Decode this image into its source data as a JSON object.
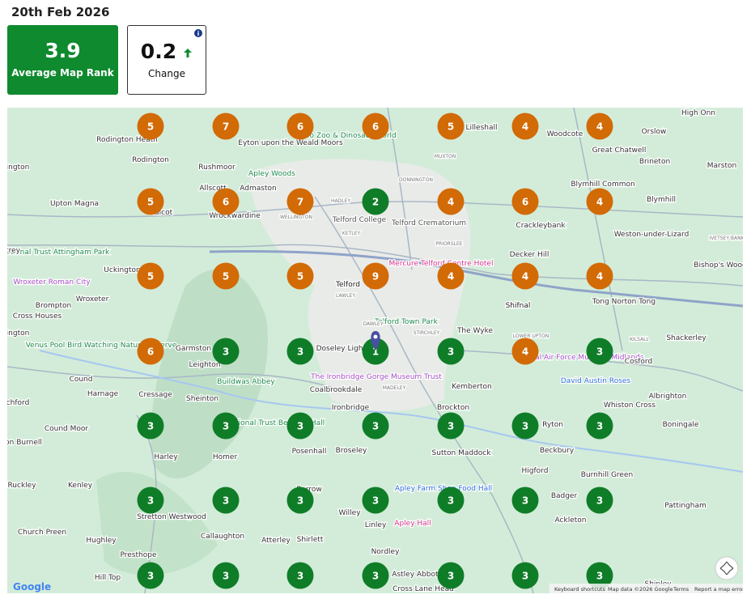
{
  "header": {
    "date": "20th Feb 2026"
  },
  "stats": {
    "average_rank": {
      "value": "3.9",
      "label": "Average Map Rank"
    },
    "change": {
      "value": "0.2",
      "label": "Change"
    }
  },
  "grid": {
    "rank_colors": {
      "1": "#0f7d28",
      "2": "#0f7d28",
      "3": "#0f7d28",
      "4": "#d26a06",
      "5": "#d26a06",
      "6": "#d26a06",
      "7": "#d26a06",
      "9": "#d26a06"
    },
    "rows": [
      [
        5,
        7,
        6,
        6,
        5,
        4,
        4
      ],
      [
        5,
        6,
        7,
        2,
        4,
        6,
        4
      ],
      [
        5,
        5,
        5,
        9,
        4,
        4,
        4
      ],
      [
        6,
        3,
        3,
        1,
        3,
        4,
        3
      ],
      [
        3,
        3,
        3,
        3,
        3,
        3,
        3
      ],
      [
        3,
        3,
        3,
        3,
        3,
        3,
        3
      ],
      [
        3,
        3,
        3,
        3,
        3,
        3,
        3
      ]
    ]
  },
  "map": {
    "places": [
      {
        "text": "Rodington Heath",
        "color": "#333"
      },
      {
        "text": "Rodington",
        "color": "#333"
      },
      {
        "text": "Rushmoor",
        "color": "#333"
      },
      {
        "text": "Allscott",
        "color": "#333"
      },
      {
        "text": "Admaston",
        "color": "#333"
      },
      {
        "text": "Eyton upon the Weald Moors",
        "color": "#333"
      },
      {
        "text": "Hoo Zoo & Dinosaur World",
        "color": "#1e8a4c"
      },
      {
        "text": "Lilleshall",
        "color": "#333"
      },
      {
        "text": "Woodcote",
        "color": "#333"
      },
      {
        "text": "Orslow",
        "color": "#333"
      },
      {
        "text": "High Onn",
        "color": "#333"
      },
      {
        "text": "Great Chatwell",
        "color": "#333"
      },
      {
        "text": "Brineton",
        "color": "#333"
      },
      {
        "text": "Marston",
        "color": "#333"
      },
      {
        "text": "Apley Woods",
        "color": "#1e8a4c"
      },
      {
        "text": "ington",
        "color": "#333"
      },
      {
        "text": "Upton Magna",
        "color": "#333"
      },
      {
        "text": "Walcot",
        "color": "#333"
      },
      {
        "text": "Wrockwardine",
        "color": "#333"
      },
      {
        "text": "Telford College",
        "color": "#555"
      },
      {
        "text": "Telford Crematorium",
        "color": "#555"
      },
      {
        "text": "Crackleybank",
        "color": "#333"
      },
      {
        "text": "Blymhill Common",
        "color": "#333"
      },
      {
        "text": "Blymhill",
        "color": "#333"
      },
      {
        "text": "Weston-under-Lizard",
        "color": "#333"
      },
      {
        "text": "National Trust Attingham Park",
        "color": "#1e8a4c"
      },
      {
        "text": "trey",
        "color": "#333"
      },
      {
        "text": "Mercure Telford Centre Hotel",
        "color": "#d6338a"
      },
      {
        "text": "Decker Hill",
        "color": "#333"
      },
      {
        "text": "Bishop's Wood",
        "color": "#333"
      },
      {
        "text": "Uckington",
        "color": "#333"
      },
      {
        "text": "Wroxeter Roman City",
        "color": "#a34fc2"
      },
      {
        "text": "Telford",
        "color": "#222"
      },
      {
        "text": "Shifnal",
        "color": "#222"
      },
      {
        "text": "Tong Norton Tong",
        "color": "#333"
      },
      {
        "text": "Brompton",
        "color": "#333"
      },
      {
        "text": "Wroxeter",
        "color": "#333"
      },
      {
        "text": "Cross Houses",
        "color": "#333"
      },
      {
        "text": "Telford Town Park",
        "color": "#1e8a4c"
      },
      {
        "text": "The Wyke",
        "color": "#333"
      },
      {
        "text": "Shackerley",
        "color": "#333"
      },
      {
        "text": "ington",
        "color": "#333"
      },
      {
        "text": "Venus Pool Bird Watching Nature Reserve",
        "color": "#1e8a4c"
      },
      {
        "text": "Garmston",
        "color": "#333"
      },
      {
        "text": "Leighton",
        "color": "#333"
      },
      {
        "text": "Doseley Lightmoor",
        "color": "#333"
      },
      {
        "text": "The Ironbridge Gorge Museum Trust",
        "color": "#a34fc2"
      },
      {
        "text": "Royal Air Force Museum Midlands",
        "color": "#a34fc2"
      },
      {
        "text": "Cosford",
        "color": "#333"
      },
      {
        "text": "Cound",
        "color": "#333"
      },
      {
        "text": "Buildwas Abbey",
        "color": "#1e8a4c"
      },
      {
        "text": "Kemberton",
        "color": "#333"
      },
      {
        "text": "David Austin Roses",
        "color": "#2e6fd8"
      },
      {
        "text": "Harnage",
        "color": "#333"
      },
      {
        "text": "Cressage",
        "color": "#333"
      },
      {
        "text": "Sheinton",
        "color": "#333"
      },
      {
        "text": "Coalbrookdale",
        "color": "#333"
      },
      {
        "text": "Ironbridge",
        "color": "#333"
      },
      {
        "text": "Albrighton",
        "color": "#333"
      },
      {
        "text": "chford",
        "color": "#333"
      },
      {
        "text": "Brockton",
        "color": "#333"
      },
      {
        "text": "Whiston Cross",
        "color": "#333"
      },
      {
        "text": "Cound Moor",
        "color": "#333"
      },
      {
        "text": "National Trust Benthall Hall",
        "color": "#1e8a4c"
      },
      {
        "text": "Ryton",
        "color": "#333"
      },
      {
        "text": "Boningale",
        "color": "#333"
      },
      {
        "text": "on Burnell",
        "color": "#333"
      },
      {
        "text": "Posenhall",
        "color": "#333"
      },
      {
        "text": "Broseley",
        "color": "#333"
      },
      {
        "text": "Sutton Maddock",
        "color": "#333"
      },
      {
        "text": "Beckbury",
        "color": "#333"
      },
      {
        "text": "Harley",
        "color": "#333"
      },
      {
        "text": "Homer",
        "color": "#333"
      },
      {
        "text": "Higford",
        "color": "#333"
      },
      {
        "text": "Burnhill Green",
        "color": "#333"
      },
      {
        "text": "Ruckley",
        "color": "#333"
      },
      {
        "text": "Kenley",
        "color": "#333"
      },
      {
        "text": "Barrow",
        "color": "#333"
      },
      {
        "text": "Apley Farm Shop Food Hall",
        "color": "#2e6fd8"
      },
      {
        "text": "Badger",
        "color": "#333"
      },
      {
        "text": "Stretton Westwood",
        "color": "#333"
      },
      {
        "text": "Willey",
        "color": "#333"
      },
      {
        "text": "Pattingham",
        "color": "#333"
      },
      {
        "text": "Ackleton",
        "color": "#333"
      },
      {
        "text": "Church Preen",
        "color": "#333"
      },
      {
        "text": "Callaughton",
        "color": "#333"
      },
      {
        "text": "Hughley",
        "color": "#333"
      },
      {
        "text": "Atterley",
        "color": "#333"
      },
      {
        "text": "Shirlett",
        "color": "#333"
      },
      {
        "text": "Linley",
        "color": "#333"
      },
      {
        "text": "Apley Hall",
        "color": "#d6338a"
      },
      {
        "text": "Presthope",
        "color": "#333"
      },
      {
        "text": "Nordley",
        "color": "#333"
      },
      {
        "text": "Hill Top",
        "color": "#333"
      },
      {
        "text": "Astley Abbotts",
        "color": "#333"
      },
      {
        "text": "Cross Lane Head",
        "color": "#333"
      },
      {
        "text": "Shipley",
        "color": "#333"
      },
      {
        "text": "MUXTON",
        "color": "#777"
      },
      {
        "text": "DONNINGTON",
        "color": "#777"
      },
      {
        "text": "HADLEY",
        "color": "#777"
      },
      {
        "text": "WELLINGTON",
        "color": "#777"
      },
      {
        "text": "KETLEY",
        "color": "#777"
      },
      {
        "text": "PRIORSLEE",
        "color": "#777"
      },
      {
        "text": "LAWLEY",
        "color": "#777"
      },
      {
        "text": "DAWLEY",
        "color": "#777"
      },
      {
        "text": "STIRCHLEY",
        "color": "#777"
      },
      {
        "text": "MADELEY",
        "color": "#777"
      },
      {
        "text": "LOWER UPTON",
        "color": "#777"
      },
      {
        "text": "KILSALL",
        "color": "#777"
      },
      {
        "text": "IVETSEY BANK",
        "color": "#777"
      }
    ],
    "footer": {
      "logo": "Google",
      "shortcuts": "Keyboard shortcuts",
      "data": "Map data ©2026 Google",
      "terms": "Terms",
      "report": "Report a map error"
    }
  }
}
